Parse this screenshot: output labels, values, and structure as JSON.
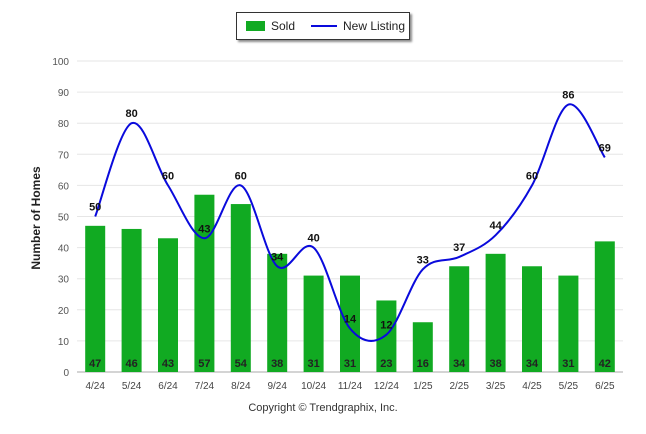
{
  "legend": {
    "sold_label": "Sold",
    "new_label": "New Listing"
  },
  "ylabel": "Number of Homes",
  "footer": "Copyright © Trendgraphix, Inc.",
  "colors": {
    "sold": "#11aa22",
    "new_listing": "#0a0adc",
    "grid": "#e6e6e6",
    "axis": "#aaaaaa"
  },
  "chart_data": {
    "type": "bar",
    "categories": [
      "4/24",
      "5/24",
      "6/24",
      "7/24",
      "8/24",
      "9/24",
      "10/24",
      "11/24",
      "12/24",
      "1/25",
      "2/25",
      "3/25",
      "4/25",
      "5/25",
      "6/25"
    ],
    "series": [
      {
        "name": "Sold",
        "type": "bar",
        "values": [
          47,
          46,
          43,
          57,
          54,
          38,
          31,
          31,
          23,
          16,
          34,
          38,
          34,
          31,
          42
        ]
      },
      {
        "name": "New Listing",
        "type": "line",
        "values": [
          50,
          80,
          60,
          43,
          60,
          34,
          40,
          14,
          12,
          33,
          37,
          44,
          60,
          86,
          69
        ]
      }
    ],
    "ylim": [
      0,
      100
    ],
    "yticks": [
      0,
      10,
      20,
      30,
      40,
      50,
      60,
      70,
      80,
      90,
      100
    ],
    "grid": true,
    "legend_position": "top-center"
  }
}
